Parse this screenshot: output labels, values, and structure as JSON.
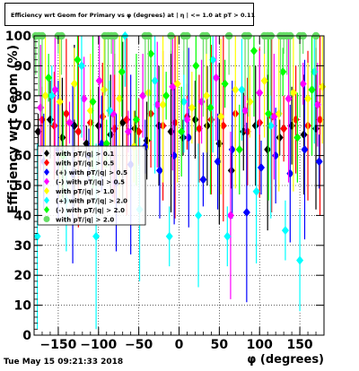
{
  "chart_data": {
    "type": "scatter",
    "title": "Efficiency wrt Geom for Primary vs φ (degrees) at | η | <= 1.0 at pT > 0.11",
    "xlabel": "φ (degrees)",
    "ylabel": "Efficiency wrt Geom (%)",
    "xlim": [
      -180,
      180
    ],
    "ylim": [
      0,
      100
    ],
    "xticks": [
      -150,
      -100,
      -50,
      0,
      50,
      100,
      150
    ],
    "yticks": [
      0,
      10,
      20,
      30,
      40,
      50,
      60,
      70,
      80,
      90,
      100
    ],
    "x_tick_labels": [
      "−150",
      "−100",
      "−50",
      "0",
      "50",
      "100",
      "150"
    ],
    "y_tick_labels": [
      "0",
      "10",
      "20",
      "30",
      "40",
      "50",
      "60",
      "70",
      "80",
      "90",
      "100"
    ],
    "grid": true,
    "legend_position": "left-middle",
    "series": [
      {
        "name": "with pT/|q| > 0.1",
        "color": "#000000",
        "marker": "diamond",
        "x": [
          -175,
          -160,
          -145,
          -130,
          -115,
          -100,
          -85,
          -70,
          -55,
          -40,
          -25,
          -10,
          5,
          20,
          35,
          50,
          65,
          80,
          95,
          110,
          125,
          140,
          155,
          170
        ],
        "y": [
          68,
          72,
          66,
          70,
          64,
          70,
          67,
          71,
          69,
          65,
          70,
          68,
          66,
          72,
          70,
          64,
          55,
          68,
          70,
          62,
          66,
          70,
          67,
          69
        ]
      },
      {
        "name": "with pT/|q| > 0.5",
        "color": "#ff0000",
        "marker": "diamond",
        "x": [
          -170,
          -155,
          -140,
          -125,
          -110,
          -95,
          -80,
          -65,
          -50,
          -35,
          -20,
          -5,
          10,
          25,
          40,
          55,
          70,
          85,
          100,
          115,
          130,
          145,
          160,
          175
        ],
        "y": [
          72,
          70,
          74,
          68,
          71,
          73,
          69,
          72,
          68,
          74,
          70,
          71,
          73,
          69,
          72,
          70,
          74,
          68,
          71,
          73,
          69,
          72,
          70,
          72
        ]
      },
      {
        "name": "(+) with pT/|q| > 0.5",
        "color": "#0000ff",
        "marker": "diamond",
        "x": [
          -168,
          -150,
          -132,
          -112,
          -96,
          -78,
          -60,
          -42,
          -24,
          -6,
          12,
          30,
          48,
          66,
          84,
          102,
          120,
          138,
          156,
          174
        ],
        "y": [
          58,
          62,
          54,
          60,
          64,
          51,
          57,
          63,
          55,
          60,
          66,
          52,
          58,
          62,
          41,
          56,
          60,
          54,
          62,
          58
        ]
      },
      {
        "name": "(-) with pT/|q| > 0.5",
        "color": "#ff00ff",
        "marker": "diamond",
        "x": [
          -172,
          -154,
          -136,
          -118,
          -99,
          -82,
          -63,
          -45,
          -27,
          -8,
          10,
          28,
          46,
          64,
          82,
          100,
          118,
          136,
          154,
          172
        ],
        "y": [
          76,
          82,
          71,
          79,
          85,
          74,
          68,
          80,
          77,
          83,
          72,
          78,
          86,
          40,
          75,
          81,
          73,
          79,
          84,
          77
        ]
      },
      {
        "name": "with pT/|q| > 1.0",
        "color": "#ffff00",
        "marker": "diamond",
        "x": [
          -166,
          -148,
          -130,
          -110,
          -93,
          -74,
          -56,
          -38,
          -20,
          -2,
          16,
          34,
          52,
          70,
          88,
          106,
          124,
          142,
          160,
          178
        ],
        "y": [
          80,
          78,
          84,
          75,
          82,
          79,
          63,
          81,
          77,
          84,
          76,
          80,
          73,
          82,
          78,
          85,
          74,
          81,
          79,
          83
        ]
      },
      {
        "name": "(+) with pT/|q| > 2.0",
        "color": "#00ffff",
        "marker": "diamond",
        "x": [
          -176,
          -158,
          -140,
          -121,
          -103,
          -86,
          -67,
          -49,
          -30,
          -12,
          6,
          24,
          42,
          60,
          78,
          96,
          114,
          132,
          150,
          168
        ],
        "y": [
          33,
          80,
          45,
          90,
          33,
          75,
          100,
          42,
          85,
          33,
          78,
          40,
          92,
          33,
          82,
          48,
          70,
          35,
          25,
          88
        ]
      },
      {
        "name": "(-) with pT/|q| > 2.0",
        "color": "#00ff00",
        "marker": "diamond",
        "x": [
          -162,
          -144,
          -126,
          -107,
          -90,
          -71,
          -53,
          -35,
          -16,
          3,
          21,
          39,
          57,
          75,
          93,
          111,
          129,
          147,
          165
        ],
        "y": [
          86,
          60,
          92,
          78,
          64,
          88,
          72,
          94,
          80,
          68,
          90,
          76,
          84,
          62,
          95,
          74,
          88,
          66,
          82
        ]
      },
      {
        "name": "with pT/|q| > 2.0",
        "color": "#66dd66",
        "marker": "circle",
        "x": [
          -178,
          -174,
          -170,
          -150,
          -146,
          -92,
          -88,
          -84,
          -80,
          -42,
          -38,
          -10,
          6,
          10,
          30,
          34,
          62,
          82,
          86,
          106,
          110,
          114,
          126,
          130,
          134,
          138,
          150,
          154,
          170
        ],
        "y": [
          100,
          100,
          100,
          100,
          100,
          100,
          100,
          100,
          100,
          100,
          100,
          100,
          100,
          100,
          100,
          100,
          100,
          100,
          100,
          100,
          100,
          100,
          100,
          100,
          100,
          100,
          100,
          100,
          100
        ]
      }
    ]
  },
  "footer": {
    "timestamp": "Tue May 15 09:21:33 2018"
  }
}
